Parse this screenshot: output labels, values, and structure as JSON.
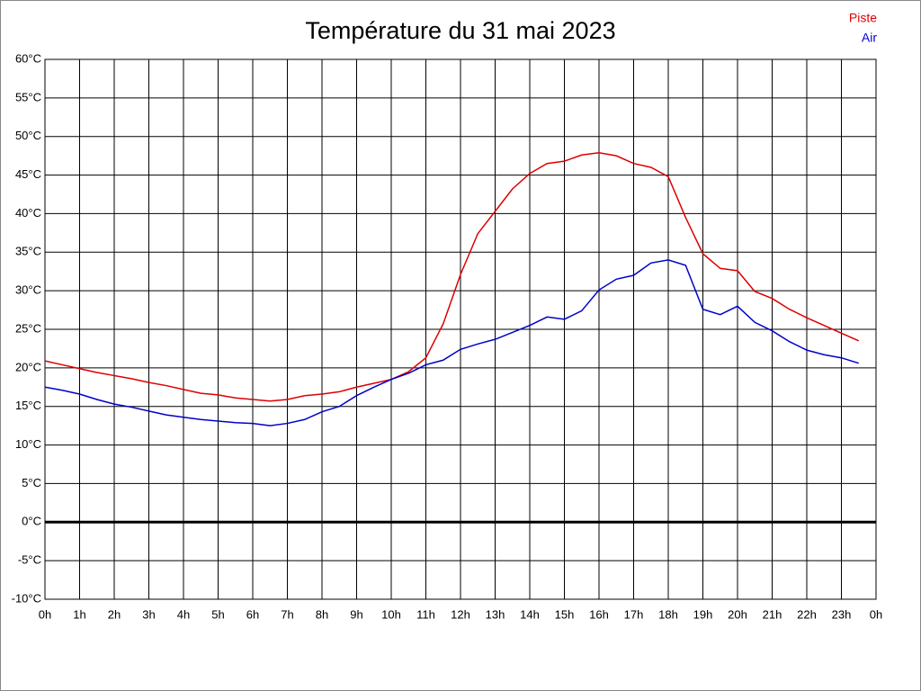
{
  "chart_data": {
    "type": "line",
    "title": "Température du 31 mai 2023",
    "x": [
      0,
      0.5,
      1,
      1.5,
      2,
      2.5,
      3,
      3.5,
      4,
      4.5,
      5,
      5.5,
      6,
      6.5,
      7,
      7.5,
      8,
      8.5,
      9,
      9.5,
      10,
      10.5,
      11,
      11.5,
      12,
      12.5,
      13,
      13.5,
      14,
      14.5,
      15,
      15.5,
      16,
      16.5,
      17,
      17.5,
      18,
      18.5,
      19,
      19.5,
      20,
      20.5,
      21,
      21.5,
      22,
      22.5,
      23,
      23.5
    ],
    "series": [
      {
        "name": "Piste",
        "color": "#dd0000",
        "values": [
          20.9,
          20.4,
          19.9,
          19.4,
          19.0,
          18.6,
          18.1,
          17.7,
          17.2,
          16.7,
          16.5,
          16.1,
          15.9,
          15.7,
          15.9,
          16.4,
          16.6,
          16.9,
          17.5,
          18.0,
          18.5,
          19.5,
          21.3,
          25.7,
          32.1,
          37.4,
          40.3,
          43.2,
          45.2,
          46.5,
          46.8,
          47.6,
          47.9,
          47.5,
          46.5,
          46.0,
          44.8,
          39.5,
          34.8,
          32.9,
          32.6,
          29.9,
          29.0,
          27.6,
          26.5,
          25.5,
          24.5,
          23.5
        ]
      },
      {
        "name": "Air",
        "color": "#0000cc",
        "values": [
          17.5,
          17.1,
          16.6,
          15.9,
          15.3,
          14.9,
          14.4,
          13.9,
          13.6,
          13.3,
          13.1,
          12.9,
          12.8,
          12.5,
          12.8,
          13.3,
          14.3,
          15.0,
          16.4,
          17.5,
          18.5,
          19.3,
          20.4,
          21.0,
          22.4,
          23.1,
          23.7,
          24.6,
          25.5,
          26.6,
          26.3,
          27.4,
          30.1,
          31.5,
          32.0,
          33.6,
          34.0,
          33.3,
          27.6,
          26.9,
          28.0,
          25.9,
          24.8,
          23.4,
          22.3,
          21.7,
          21.3,
          20.6
        ]
      }
    ],
    "xlim": [
      0,
      24
    ],
    "xticks": [
      {
        "value": 0,
        "label": "0h"
      },
      {
        "value": 1,
        "label": "1h"
      },
      {
        "value": 2,
        "label": "2h"
      },
      {
        "value": 3,
        "label": "3h"
      },
      {
        "value": 4,
        "label": "4h"
      },
      {
        "value": 5,
        "label": "5h"
      },
      {
        "value": 6,
        "label": "6h"
      },
      {
        "value": 7,
        "label": "7h"
      },
      {
        "value": 8,
        "label": "8h"
      },
      {
        "value": 9,
        "label": "9h"
      },
      {
        "value": 10,
        "label": "10h"
      },
      {
        "value": 11,
        "label": "11h"
      },
      {
        "value": 12,
        "label": "12h"
      },
      {
        "value": 13,
        "label": "13h"
      },
      {
        "value": 14,
        "label": "14h"
      },
      {
        "value": 15,
        "label": "15h"
      },
      {
        "value": 16,
        "label": "16h"
      },
      {
        "value": 17,
        "label": "17h"
      },
      {
        "value": 18,
        "label": "18h"
      },
      {
        "value": 19,
        "label": "19h"
      },
      {
        "value": 20,
        "label": "20h"
      },
      {
        "value": 21,
        "label": "21h"
      },
      {
        "value": 22,
        "label": "22h"
      },
      {
        "value": 23,
        "label": "23h"
      },
      {
        "value": 24,
        "label": "0h"
      }
    ],
    "ylim": [
      -10,
      60
    ],
    "yticks": [
      {
        "value": 60,
        "label": "60°C"
      },
      {
        "value": 55,
        "label": "55°C"
      },
      {
        "value": 50,
        "label": "50°C"
      },
      {
        "value": 45,
        "label": "45°C"
      },
      {
        "value": 40,
        "label": "40°C"
      },
      {
        "value": 35,
        "label": "35°C"
      },
      {
        "value": 30,
        "label": "30°C"
      },
      {
        "value": 25,
        "label": "25°C"
      },
      {
        "value": 20,
        "label": "20°C"
      },
      {
        "value": 15,
        "label": "15°C"
      },
      {
        "value": 10,
        "label": "10°C"
      },
      {
        "value": 5,
        "label": "5°C"
      },
      {
        "value": 0,
        "label": "0°C"
      },
      {
        "value": -5,
        "label": "-5°C"
      },
      {
        "value": -10,
        "label": "-10°C"
      }
    ],
    "grid": true,
    "legend": "top-right"
  }
}
